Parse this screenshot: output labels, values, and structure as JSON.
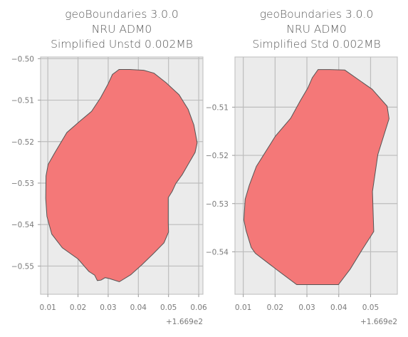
{
  "chart_data": [
    {
      "type": "map",
      "title_lines": [
        "geoBoundaries 3.0.0",
        "NRU ADM0",
        "Simplified Unstd 0.002MB"
      ],
      "x_ticks": [
        0.01,
        0.02,
        0.03,
        0.04,
        0.05,
        0.06
      ],
      "x_tick_labels": [
        "0.01",
        "0.02",
        "0.03",
        "0.04",
        "0.05",
        "0.06"
      ],
      "x_offset_label": "+1.669e2",
      "xlim": [
        0.0076,
        0.0614
      ],
      "y_ticks": [
        -0.5,
        -0.51,
        -0.52,
        -0.53,
        -0.54,
        -0.55
      ],
      "y_tick_labels": [
        "−0.50",
        "−0.51",
        "−0.52",
        "−0.53",
        "−0.54",
        "−0.55"
      ],
      "ylim": [
        -0.5568,
        -0.4996
      ],
      "grid": true,
      "fill_color": "#f47878",
      "edge_color": "#555555",
      "boundary": [
        [
          0.0336,
          -0.5026
        ],
        [
          0.0372,
          -0.5026
        ],
        [
          0.0418,
          -0.5028
        ],
        [
          0.0452,
          -0.5035
        ],
        [
          0.0492,
          -0.5058
        ],
        [
          0.0535,
          -0.5087
        ],
        [
          0.0565,
          -0.5122
        ],
        [
          0.0584,
          -0.516
        ],
        [
          0.0595,
          -0.5203
        ],
        [
          0.0588,
          -0.5226
        ],
        [
          0.0565,
          -0.5255
        ],
        [
          0.0545,
          -0.528
        ],
        [
          0.0524,
          -0.5301
        ],
        [
          0.0512,
          -0.532
        ],
        [
          0.0499,
          -0.5335
        ],
        [
          0.0499,
          -0.5394
        ],
        [
          0.05,
          -0.5418
        ],
        [
          0.0485,
          -0.5444
        ],
        [
          0.045,
          -0.547
        ],
        [
          0.0413,
          -0.5496
        ],
        [
          0.0375,
          -0.5521
        ],
        [
          0.0337,
          -0.5538
        ],
        [
          0.0303,
          -0.553
        ],
        [
          0.029,
          -0.5528
        ],
        [
          0.0276,
          -0.5534
        ],
        [
          0.0264,
          -0.5535
        ],
        [
          0.0255,
          -0.5522
        ],
        [
          0.0236,
          -0.5513
        ],
        [
          0.02,
          -0.5483
        ],
        [
          0.0148,
          -0.5456
        ],
        [
          0.0113,
          -0.5423
        ],
        [
          0.0097,
          -0.538
        ],
        [
          0.0093,
          -0.5337
        ],
        [
          0.0094,
          -0.5283
        ],
        [
          0.0101,
          -0.5255
        ],
        [
          0.0122,
          -0.5228
        ],
        [
          0.0163,
          -0.5178
        ],
        [
          0.0207,
          -0.515
        ],
        [
          0.0245,
          -0.5127
        ],
        [
          0.0275,
          -0.5094
        ],
        [
          0.0299,
          -0.5062
        ],
        [
          0.0314,
          -0.5038
        ]
      ]
    },
    {
      "type": "map",
      "title_lines": [
        "geoBoundaries 3.0.0",
        "NRU ADM0",
        "Simplified Std 0.002MB"
      ],
      "x_ticks": [
        0.01,
        0.02,
        0.03,
        0.04,
        0.05
      ],
      "x_tick_labels": [
        "0.01",
        "0.02",
        "0.03",
        "0.04",
        "0.05"
      ],
      "x_offset_label": "+1.669e2",
      "xlim": [
        0.0074,
        0.0584
      ],
      "y_ticks": [
        -0.51,
        -0.52,
        -0.53,
        -0.54
      ],
      "y_tick_labels": [
        "−0.51",
        "−0.52",
        "−0.53",
        "−0.54"
      ],
      "ylim": [
        -0.5488,
        -0.4996
      ],
      "grid": true,
      "fill_color": "#f47878",
      "edge_color": "#555555",
      "boundary": [
        [
          0.0335,
          -0.5022
        ],
        [
          0.0372,
          -0.5022
        ],
        [
          0.0419,
          -0.5023
        ],
        [
          0.0505,
          -0.5063
        ],
        [
          0.0552,
          -0.5098
        ],
        [
          0.0558,
          -0.5124
        ],
        [
          0.0523,
          -0.5198
        ],
        [
          0.0506,
          -0.5275
        ],
        [
          0.051,
          -0.5358
        ],
        [
          0.0474,
          -0.5395
        ],
        [
          0.0436,
          -0.5436
        ],
        [
          0.0399,
          -0.5468
        ],
        [
          0.0268,
          -0.5468
        ],
        [
          0.0205,
          -0.5437
        ],
        [
          0.0138,
          -0.5403
        ],
        [
          0.0125,
          -0.5391
        ],
        [
          0.0109,
          -0.5356
        ],
        [
          0.0102,
          -0.5334
        ],
        [
          0.0106,
          -0.5291
        ],
        [
          0.0119,
          -0.5262
        ],
        [
          0.0141,
          -0.5223
        ],
        [
          0.0201,
          -0.516
        ],
        [
          0.0249,
          -0.5123
        ],
        [
          0.0279,
          -0.5087
        ],
        [
          0.0303,
          -0.506
        ],
        [
          0.0317,
          -0.5039
        ]
      ]
    }
  ]
}
